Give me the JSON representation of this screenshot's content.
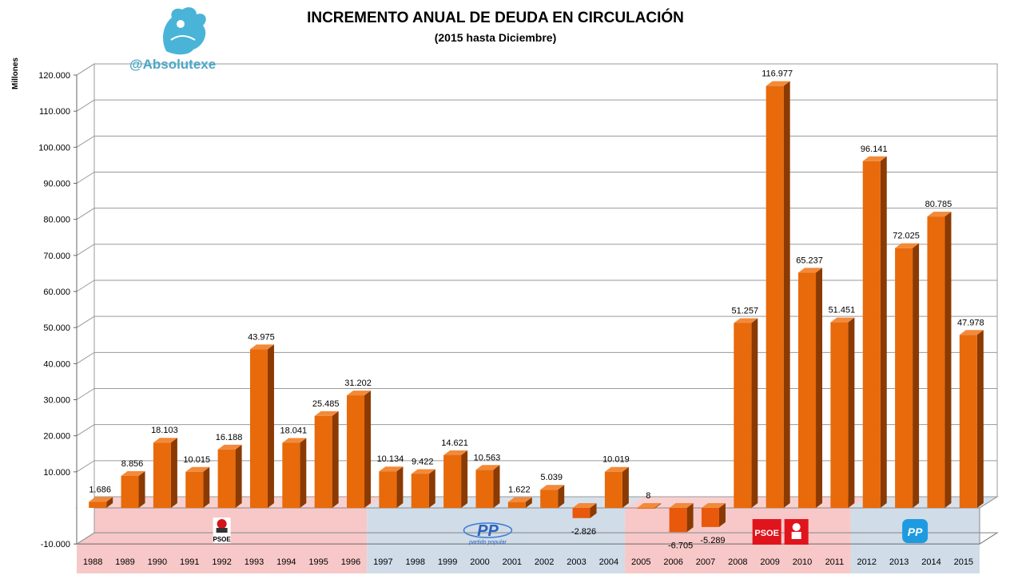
{
  "chart_data": {
    "type": "bar",
    "title": "INCREMENTO ANUAL DE DEUDA EN CIRCULACIÓN",
    "subtitle": "(2015 hasta Diciembre)",
    "xlabel": "",
    "ylabel": "Millones",
    "ylim": [
      -10000,
      120000
    ],
    "yticks": [
      -10000,
      10000,
      20000,
      30000,
      40000,
      50000,
      60000,
      70000,
      80000,
      90000,
      100000,
      110000,
      120000
    ],
    "ytick_labels": [
      "-10.000",
      "10.000",
      "20.000",
      "30.000",
      "40.000",
      "50.000",
      "60.000",
      "70.000",
      "80.000",
      "90.000",
      "100.000",
      "110.000",
      "120.000"
    ],
    "grid": true,
    "categories": [
      "1988",
      "1989",
      "1990",
      "1991",
      "1992",
      "1993",
      "1994",
      "1995",
      "1996",
      "1997",
      "1998",
      "1999",
      "2000",
      "2001",
      "2002",
      "2003",
      "2004",
      "2005",
      "2006",
      "2007",
      "2008",
      "2009",
      "2010",
      "2011",
      "2012",
      "2013",
      "2014",
      "2015"
    ],
    "values": [
      1686,
      8856,
      18103,
      10015,
      16188,
      43975,
      18041,
      25485,
      31202,
      10134,
      9422,
      14621,
      10563,
      1622,
      5039,
      -2826,
      10019,
      8,
      -6705,
      -5289,
      51257,
      116977,
      65237,
      51451,
      96141,
      72025,
      80785,
      47978
    ],
    "value_labels": [
      "1.686",
      "8.856",
      "18.103",
      "10.015",
      "16.188",
      "43.975",
      "18.041",
      "25.485",
      "31.202",
      "10.134",
      "9.422",
      "14.621",
      "10.563",
      "1.622",
      "5.039",
      "-2.826",
      "10.019",
      "8",
      "-6.705",
      "-5.289",
      "51.257",
      "116.977",
      "65.237",
      "51.451",
      "96.141",
      "72.025",
      "80.785",
      "47.978"
    ],
    "bar_color": "#e86a0a",
    "periods": [
      {
        "party": "PSOE",
        "from": "1988",
        "to": "1996",
        "color": "#f8c8c8",
        "logo": "psoe-rose-logo"
      },
      {
        "party": "PP",
        "from": "1997",
        "to": "2004",
        "color": "#d0dce8",
        "logo": "pp-logo",
        "logo_caption": "partido popular"
      },
      {
        "party": "PSOE",
        "from": "2005",
        "to": "2011",
        "color": "#f8c8c8",
        "logo": "psoe-logo"
      },
      {
        "party": "PP",
        "from": "2012",
        "to": "2015",
        "color": "#d0dce8",
        "logo": "pp-logo"
      }
    ]
  },
  "branding": {
    "handle": "@Absolutexe",
    "logo": "griffin-logo"
  }
}
